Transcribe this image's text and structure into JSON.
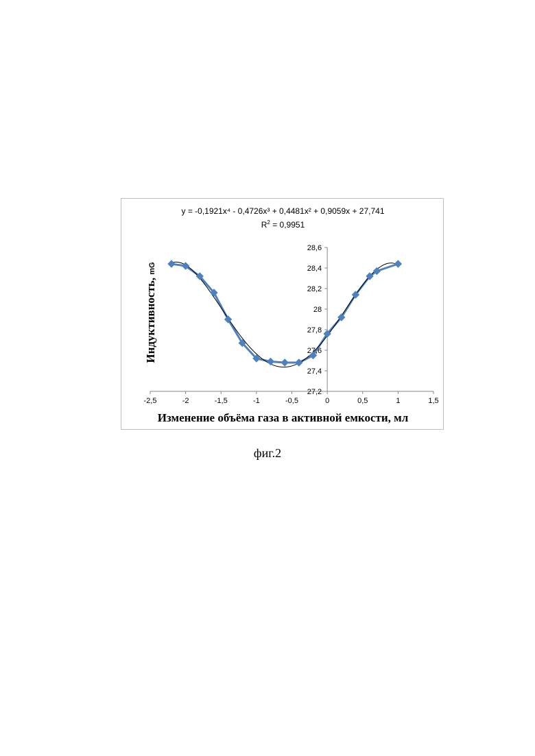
{
  "chart_data": {
    "type": "scatter",
    "equation": "y = -0,1921x⁴ - 0,4726x³ + 0,4481x² + 0,9059x + 27,741",
    "r_squared_label": "R",
    "r_squared_exp": "2",
    "r_squared_value": " = 0,9951",
    "xlabel": "Изменение объёма газа в активной емкости, мл",
    "ylabel": "Индуктивность,",
    "ylabel_unit": "mG",
    "xlim": [
      -2.5,
      1.5
    ],
    "ylim": [
      27.2,
      28.6
    ],
    "x_ticks": [
      -2.5,
      -2,
      -1.5,
      -1,
      -0.5,
      0,
      0.5,
      1,
      1.5
    ],
    "x_tick_labels": [
      "-2,5",
      "-2",
      "-1,5",
      "-1",
      "-0,5",
      "0",
      "0,5",
      "1",
      "1,5"
    ],
    "y_ticks": [
      27.2,
      27.4,
      27.6,
      27.8,
      28,
      28.2,
      28.4,
      28.6
    ],
    "y_tick_labels": [
      "27,2",
      "27,4",
      "27,6",
      "27,8",
      "28",
      "28,2",
      "28,4",
      "28,6"
    ],
    "series": [
      {
        "x": [
          -2.2,
          -2.0,
          -1.8,
          -1.6,
          -1.4,
          -1.2,
          -1.0,
          -0.8,
          -0.6,
          -0.4,
          -0.2,
          0.0,
          0.2,
          0.4,
          0.6,
          0.7,
          1.0
        ],
        "y": [
          28.44,
          28.42,
          28.32,
          28.16,
          27.9,
          27.67,
          27.52,
          27.49,
          27.48,
          27.48,
          27.55,
          27.76,
          27.92,
          28.14,
          28.32,
          28.37,
          28.44
        ],
        "color": "#4f81bd",
        "marker": "diamond"
      }
    ],
    "trendline": {
      "type": "polynomial",
      "coefficients": [
        -0.1921,
        -0.4726,
        0.4481,
        0.9059,
        27.741
      ],
      "x_range": [
        -2.2,
        1.0
      ],
      "color": "#000000"
    },
    "grid": false,
    "legend": "none"
  },
  "caption": "фиг.2"
}
